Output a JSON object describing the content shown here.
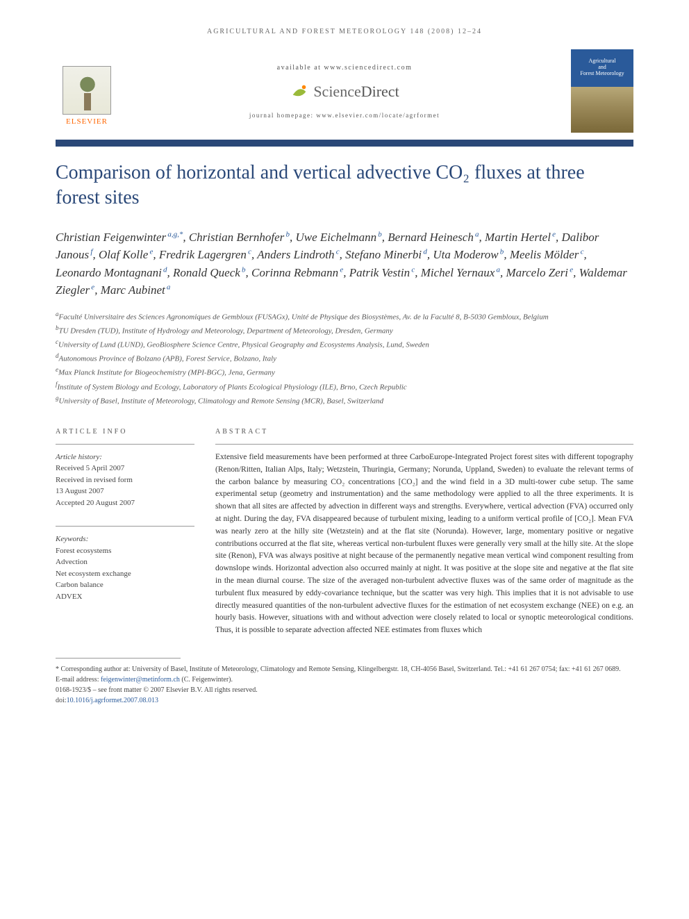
{
  "running_head": "AGRICULTURAL AND FOREST METEOROLOGY 148 (2008) 12–24",
  "header": {
    "available_text": "available at www.sciencedirect.com",
    "sd_brand_1": "Science",
    "sd_brand_2": "Direct",
    "homepage_text": "journal homepage: www.elsevier.com/locate/agrformet",
    "elsevier_text": "ELSEVIER",
    "cover_line1": "Agricultural",
    "cover_line2": "and",
    "cover_line3": "Forest Meteorology"
  },
  "title": "Comparison of horizontal and vertical advective CO₂ fluxes at three forest sites",
  "authors": [
    {
      "name": "Christian Feigenwinter",
      "sup": "a,g,*"
    },
    {
      "name": "Christian Bernhofer",
      "sup": "b"
    },
    {
      "name": "Uwe Eichelmann",
      "sup": "b"
    },
    {
      "name": "Bernard Heinesch",
      "sup": "a"
    },
    {
      "name": "Martin Hertel",
      "sup": "e"
    },
    {
      "name": "Dalibor Janous",
      "sup": "f"
    },
    {
      "name": "Olaf Kolle",
      "sup": "e"
    },
    {
      "name": "Fredrik Lagergren",
      "sup": "c"
    },
    {
      "name": "Anders Lindroth",
      "sup": "c"
    },
    {
      "name": "Stefano Minerbi",
      "sup": "d"
    },
    {
      "name": "Uta Moderow",
      "sup": "b"
    },
    {
      "name": "Meelis Mölder",
      "sup": "c"
    },
    {
      "name": "Leonardo Montagnani",
      "sup": "d"
    },
    {
      "name": "Ronald Queck",
      "sup": "b"
    },
    {
      "name": "Corinna Rebmann",
      "sup": "e"
    },
    {
      "name": "Patrik Vestin",
      "sup": "c"
    },
    {
      "name": "Michel Yernaux",
      "sup": "a"
    },
    {
      "name": "Marcelo Zeri",
      "sup": "e"
    },
    {
      "name": "Waldemar Ziegler",
      "sup": "e"
    },
    {
      "name": "Marc Aubinet",
      "sup": "a"
    }
  ],
  "affiliations": [
    {
      "sup": "a",
      "text": "Faculté Universitaire des Sciences Agronomiques de Gembloux (FUSAGx), Unité de Physique des Biosystèmes, Av. de la Faculté 8, B-5030 Gembloux, Belgium"
    },
    {
      "sup": "b",
      "text": "TU Dresden (TUD), Institute of Hydrology and Meteorology, Department of Meteorology, Dresden, Germany"
    },
    {
      "sup": "c",
      "text": "University of Lund (LUND), GeoBiosphere Science Centre, Physical Geography and Ecosystems Analysis, Lund, Sweden"
    },
    {
      "sup": "d",
      "text": "Autonomous Province of Bolzano (APB), Forest Service, Bolzano, Italy"
    },
    {
      "sup": "e",
      "text": "Max Planck Institute for Biogeochemistry (MPI-BGC), Jena, Germany"
    },
    {
      "sup": "f",
      "text": "Institute of System Biology and Ecology, Laboratory of Plants Ecological Physiology (ILE), Brno, Czech Republic"
    },
    {
      "sup": "g",
      "text": "University of Basel, Institute of Meteorology, Climatology and Remote Sensing (MCR), Basel, Switzerland"
    }
  ],
  "article_info": {
    "head": "ARTICLE INFO",
    "history_label": "Article history:",
    "received": "Received 5 April 2007",
    "revised1": "Received in revised form",
    "revised2": "13 August 2007",
    "accepted": "Accepted 20 August 2007",
    "keywords_label": "Keywords:",
    "keywords": [
      "Forest ecosystems",
      "Advection",
      "Net ecosystem exchange",
      "Carbon balance",
      "ADVEX"
    ]
  },
  "abstract": {
    "head": "ABSTRACT",
    "text": "Extensive field measurements have been performed at three CarboEurope-Integrated Project forest sites with different topography (Renon/Ritten, Italian Alps, Italy; Wetzstein, Thuringia, Germany; Norunda, Uppland, Sweden) to evaluate the relevant terms of the carbon balance by measuring CO₂ concentrations [CO₂] and the wind field in a 3D multi-tower cube setup. The same experimental setup (geometry and instrumentation) and the same methodology were applied to all the three experiments. It is shown that all sites are affected by advection in different ways and strengths. Everywhere, vertical advection (FVA) occurred only at night. During the day, FVA disappeared because of turbulent mixing, leading to a uniform vertical profile of [CO₂]. Mean FVA was nearly zero at the hilly site (Wetzstein) and at the flat site (Norunda). However, large, momentary positive or negative contributions occurred at the flat site, whereas vertical non-turbulent fluxes were generally very small at the hilly site. At the slope site (Renon), FVA was always positive at night because of the permanently negative mean vertical wind component resulting from downslope winds. Horizontal advection also occurred mainly at night. It was positive at the slope site and negative at the flat site in the mean diurnal course. The size of the averaged non-turbulent advective fluxes was of the same order of magnitude as the turbulent flux measured by eddy-covariance technique, but the scatter was very high. This implies that it is not advisable to use directly measured quantities of the non-turbulent advective fluxes for the estimation of net ecosystem exchange (NEE) on e.g. an hourly basis. However, situations with and without advection were closely related to local or synoptic meteorological conditions. Thus, it is possible to separate advection affected NEE estimates from fluxes which"
  },
  "footnote": {
    "corr_label": "* Corresponding author at:",
    "corr_text": " University of Basel, Institute of Meteorology, Climatology and Remote Sensing, Klingelbergstr. 18, CH-4056 Basel, Switzerland. Tel.: +41 61 267 0754; fax: +41 61 267 0689.",
    "email_label": "E-mail address: ",
    "email": "feigenwinter@metinform.ch",
    "email_suffix": " (C. Feigenwinter).",
    "issn": "0168-1923/$ – see front matter © 2007 Elsevier B.V. All rights reserved.",
    "doi_label": "doi:",
    "doi": "10.1016/j.agrformet.2007.08.013"
  },
  "colors": {
    "title_color": "#2a4878",
    "link_color": "#2a5a9a",
    "elsevier_orange": "#ff6600",
    "separator": "#2a4878"
  }
}
